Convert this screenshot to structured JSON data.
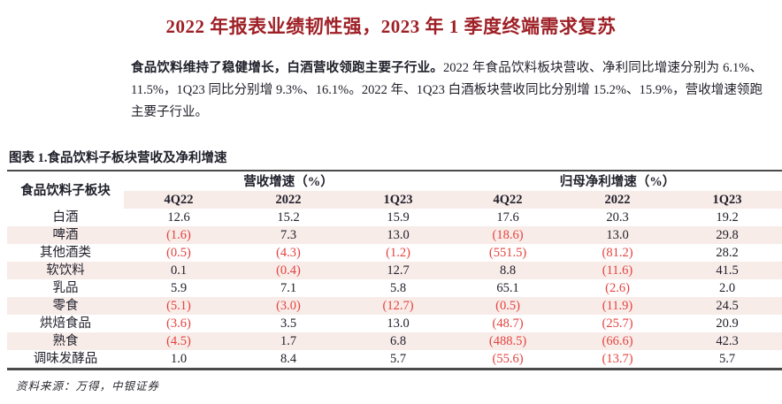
{
  "page": {
    "title": "2022 年报表业绩韧性强，2023 年 1 季度终端需求复苏",
    "intro_bold": "食品饮料维持了稳健增长，白酒营收领跑主要子行业。",
    "intro_rest": "2022 年食品饮料板块营收、净利同比增速分别为 6.1%、11.5%，1Q23 同比分别增 9.3%、16.1%。2022 年、1Q23 白酒板块营收同比分别增 15.2%、15.9%，营收增速领跑主要子行业。",
    "caption": "图表 1.食品饮料子板块营收及净利增速",
    "source": "资料来源：万得，中银证券"
  },
  "table": {
    "row_header": "食品饮料子板块",
    "group_headers": [
      "营收增速（%）",
      "归母净利增速（%）"
    ],
    "sub_headers": [
      "4Q22",
      "2022",
      "1Q23",
      "4Q22",
      "2022",
      "1Q23"
    ],
    "rows": [
      {
        "label": "白酒",
        "values": [
          "12.6",
          "15.2",
          "15.9",
          "17.6",
          "20.3",
          "19.2"
        ]
      },
      {
        "label": "啤酒",
        "values": [
          "(1.6)",
          "7.3",
          "13.0",
          "(18.6)",
          "13.0",
          "29.8"
        ]
      },
      {
        "label": "其他酒类",
        "values": [
          "(0.5)",
          "(4.3)",
          "(1.2)",
          "(551.5)",
          "(81.2)",
          "28.2"
        ]
      },
      {
        "label": "软饮料",
        "values": [
          "0.1",
          "(0.4)",
          "12.7",
          "8.8",
          "(11.6)",
          "41.5"
        ]
      },
      {
        "label": "乳品",
        "values": [
          "5.9",
          "7.1",
          "5.8",
          "65.1",
          "(2.6)",
          "2.0"
        ]
      },
      {
        "label": "零食",
        "values": [
          "(5.1)",
          "(3.0)",
          "(12.7)",
          "(0.5)",
          "(11.9)",
          "24.5"
        ]
      },
      {
        "label": "烘焙食品",
        "values": [
          "(3.6)",
          "3.5",
          "13.0",
          "(48.7)",
          "(25.7)",
          "20.9"
        ]
      },
      {
        "label": "熟食",
        "values": [
          "(4.5)",
          "1.7",
          "6.8",
          "(488.5)",
          "(66.6)",
          "42.3"
        ]
      },
      {
        "label": "调味发酵品",
        "values": [
          "1.0",
          "8.4",
          "5.7",
          "(55.6)",
          "(13.7)",
          "5.7"
        ]
      }
    ]
  },
  "colors": {
    "title_red": "#9e2026",
    "negative_red": "#e4423e",
    "row_pink": "#f8ece9",
    "text_dark": "#20202b",
    "rule_gray": "#4a4a4a"
  }
}
